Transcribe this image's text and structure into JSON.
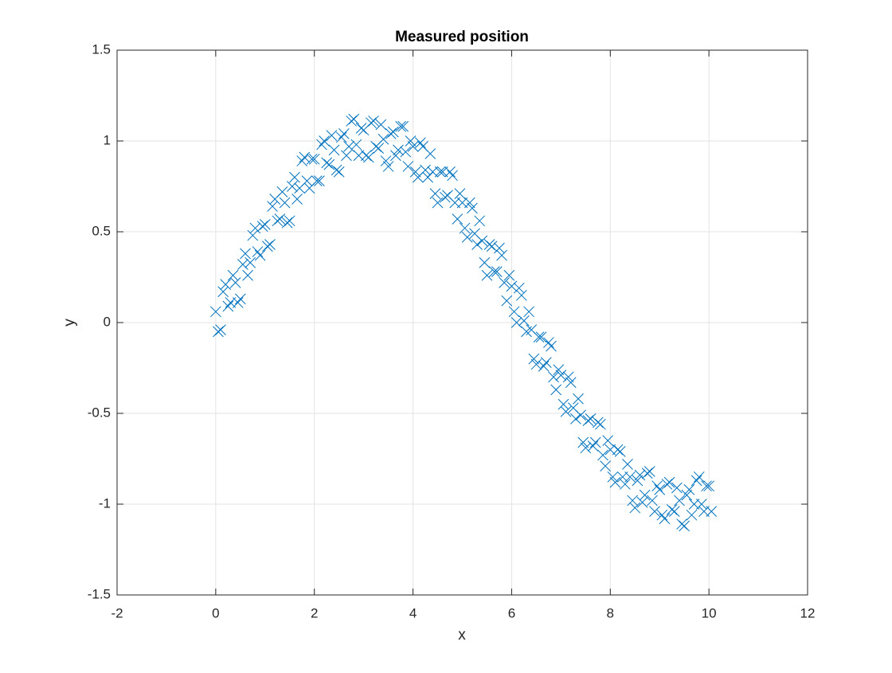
{
  "chart_data": {
    "type": "scatter",
    "title": "Measured position",
    "xlabel": "x",
    "ylabel": "y",
    "color": "#0072bd",
    "marker": "x",
    "grid": true,
    "xlim": [
      -2,
      12
    ],
    "ylim": [
      -1.5,
      1.5
    ],
    "xticks": [
      -2,
      0,
      2,
      4,
      6,
      8,
      10,
      12
    ],
    "yticks": [
      -1.5,
      -1,
      -0.5,
      0,
      0.5,
      1,
      1.5
    ],
    "x": [
      0,
      0.1,
      0.2,
      0.3,
      0.4,
      0.5,
      0.6,
      0.7,
      0.8,
      0.9,
      1.0,
      1.1,
      1.2,
      1.3,
      1.4,
      1.5,
      1.6,
      1.7,
      1.8,
      1.9,
      2.0,
      2.1,
      2.2,
      2.3,
      2.4,
      2.5,
      2.6,
      2.7,
      2.8,
      2.9,
      3.0,
      3.1,
      3.2,
      3.3,
      3.4,
      3.5,
      3.6,
      3.7,
      3.8,
      3.9,
      4.0,
      4.1,
      4.2,
      4.3,
      4.4,
      4.5,
      4.6,
      4.7,
      4.8,
      4.9,
      5.0,
      5.1,
      5.2,
      5.3,
      5.4,
      5.5,
      5.6,
      5.7,
      5.8,
      5.9,
      6.0,
      6.1,
      6.2,
      6.3,
      6.4,
      6.5,
      6.6,
      6.7,
      6.8,
      6.9,
      7.0,
      7.1,
      7.2,
      7.3,
      7.4,
      7.5,
      7.6,
      7.7,
      7.8,
      7.9,
      8.0,
      8.1,
      8.2,
      8.3,
      8.4,
      8.5,
      8.6,
      8.7,
      8.8,
      8.9,
      9.0,
      9.1,
      9.2,
      9.3,
      9.4,
      9.5,
      9.6,
      9.7,
      9.8,
      9.9,
      10.0,
      0.05,
      0.15,
      0.25,
      0.35,
      0.45,
      0.55,
      0.65,
      0.75,
      0.85,
      0.95,
      1.05,
      1.15,
      1.25,
      1.35,
      1.45,
      1.55,
      1.65,
      1.75,
      1.85,
      1.95,
      2.05,
      2.15,
      2.25,
      2.35,
      2.45,
      2.55,
      2.65,
      2.75,
      2.85,
      2.95,
      3.05,
      3.15,
      3.25,
      3.35,
      3.45,
      3.55,
      3.65,
      3.75,
      3.85,
      3.95,
      4.05,
      4.15,
      4.25,
      4.35,
      4.45,
      4.55,
      4.65,
      4.75,
      4.85,
      4.95,
      5.05,
      5.15,
      5.25,
      5.35,
      5.45,
      5.55,
      5.65,
      5.75,
      5.85,
      5.95,
      6.05,
      6.15,
      6.25,
      6.35,
      6.45,
      6.55,
      6.65,
      6.75,
      6.85,
      6.95,
      7.05,
      7.15,
      7.25,
      7.35,
      7.45,
      7.55,
      7.65,
      7.75,
      7.85,
      7.95,
      8.05,
      8.15,
      8.25,
      8.35,
      8.45,
      8.55,
      8.65,
      8.75,
      8.85,
      8.95,
      9.05,
      9.15,
      9.25,
      9.35,
      9.45,
      9.55,
      9.65,
      9.75,
      9.85,
      9.95,
      10.05
    ],
    "y": [
      0.06,
      -0.04,
      0.21,
      0.11,
      0.22,
      0.13,
      0.38,
      0.33,
      0.52,
      0.37,
      0.54,
      0.43,
      0.68,
      0.57,
      0.66,
      0.56,
      0.8,
      0.74,
      0.91,
      0.74,
      0.9,
      0.78,
      1.0,
      0.87,
      0.95,
      0.83,
      1.04,
      0.97,
      1.12,
      0.92,
      1.06,
      0.91,
      1.11,
      0.96,
      1.01,
      0.86,
      1.05,
      0.95,
      1.08,
      0.86,
      0.97,
      0.8,
      0.97,
      0.8,
      0.83,
      0.66,
      0.83,
      0.7,
      0.81,
      0.57,
      0.66,
      0.47,
      0.63,
      0.43,
      0.45,
      0.26,
      0.42,
      0.28,
      0.37,
      0.12,
      0.2,
      0.0,
      0.15,
      -0.05,
      -0.04,
      -0.23,
      -0.08,
      -0.22,
      -0.13,
      -0.37,
      -0.29,
      -0.49,
      -0.33,
      -0.53,
      -0.51,
      -0.69,
      -0.53,
      -0.66,
      -0.56,
      -0.79,
      -0.7,
      -0.88,
      -0.71,
      -0.89,
      -0.85,
      -1.02,
      -0.84,
      -0.95,
      -0.82,
      -1.04,
      -0.92,
      -1.08,
      -0.88,
      -1.04,
      -0.98,
      -1.12,
      -0.92,
      -1.0,
      -0.85,
      -1.04,
      -0.9,
      -0.05,
      0.17,
      0.09,
      0.26,
      0.11,
      0.32,
      0.26,
      0.48,
      0.39,
      0.53,
      0.42,
      0.64,
      0.56,
      0.72,
      0.55,
      0.75,
      0.68,
      0.89,
      0.78,
      0.9,
      0.78,
      0.98,
      0.88,
      1.03,
      0.84,
      1.02,
      0.92,
      1.11,
      0.98,
      1.07,
      0.92,
      1.1,
      0.97,
      1.09,
      0.89,
      1.04,
      0.92,
      1.08,
      0.94,
      1.0,
      0.83,
      0.99,
      0.84,
      0.93,
      0.71,
      0.83,
      0.69,
      0.83,
      0.66,
      0.71,
      0.52,
      0.66,
      0.49,
      0.56,
      0.33,
      0.43,
      0.28,
      0.41,
      0.22,
      0.26,
      0.06,
      0.19,
      0.01,
      0.06,
      -0.2,
      -0.08,
      -0.24,
      -0.11,
      -0.3,
      -0.26,
      -0.45,
      -0.3,
      -0.47,
      -0.42,
      -0.66,
      -0.54,
      -0.68,
      -0.55,
      -0.73,
      -0.65,
      -0.85,
      -0.7,
      -0.85,
      -0.78,
      -0.98,
      -0.87,
      -0.99,
      -0.83,
      -0.98,
      -0.9,
      -1.06,
      -0.89,
      -1.03,
      -0.91,
      -1.11,
      -0.95,
      -1.06,
      -0.87,
      -1.0,
      -0.9,
      -1.04
    ]
  }
}
